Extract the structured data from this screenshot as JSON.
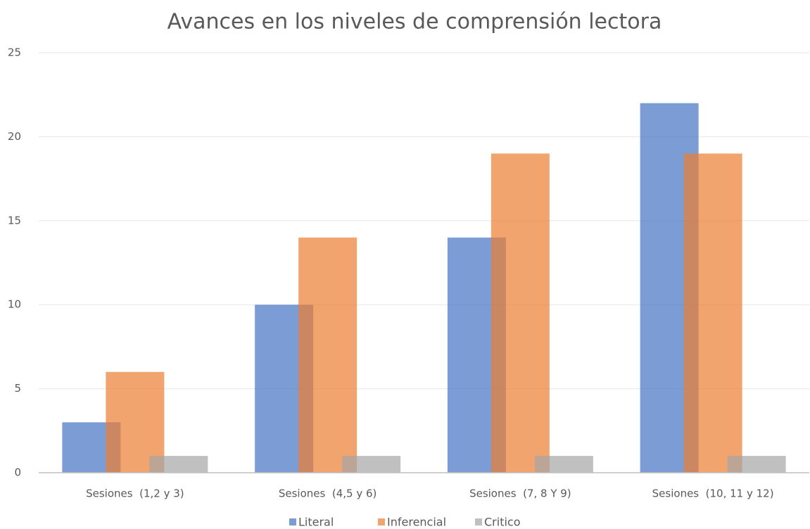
{
  "chart_data": {
    "type": "bar",
    "title": "Avances en los niveles de comprensión lectora",
    "categories": [
      "Sesiones  (1,2 y 3)",
      "Sesiones  (4,5 y 6)",
      "Sesiones  (7, 8 Y 9)",
      "Sesiones  (10, 11 y 12)"
    ],
    "series": [
      {
        "name": "Literal",
        "color": "#4472c4",
        "values": [
          3,
          10,
          14,
          22
        ]
      },
      {
        "name": "Inferencial",
        "color": "#ed7d31",
        "values": [
          6,
          14,
          19,
          19
        ]
      },
      {
        "name": "Critico",
        "color": "#a5a5a5",
        "values": [
          1,
          1,
          1,
          1
        ]
      }
    ],
    "ylim": [
      0,
      25
    ],
    "yticks": [
      0,
      5,
      10,
      15,
      20,
      25
    ],
    "grid": true,
    "legend": "bottom"
  }
}
